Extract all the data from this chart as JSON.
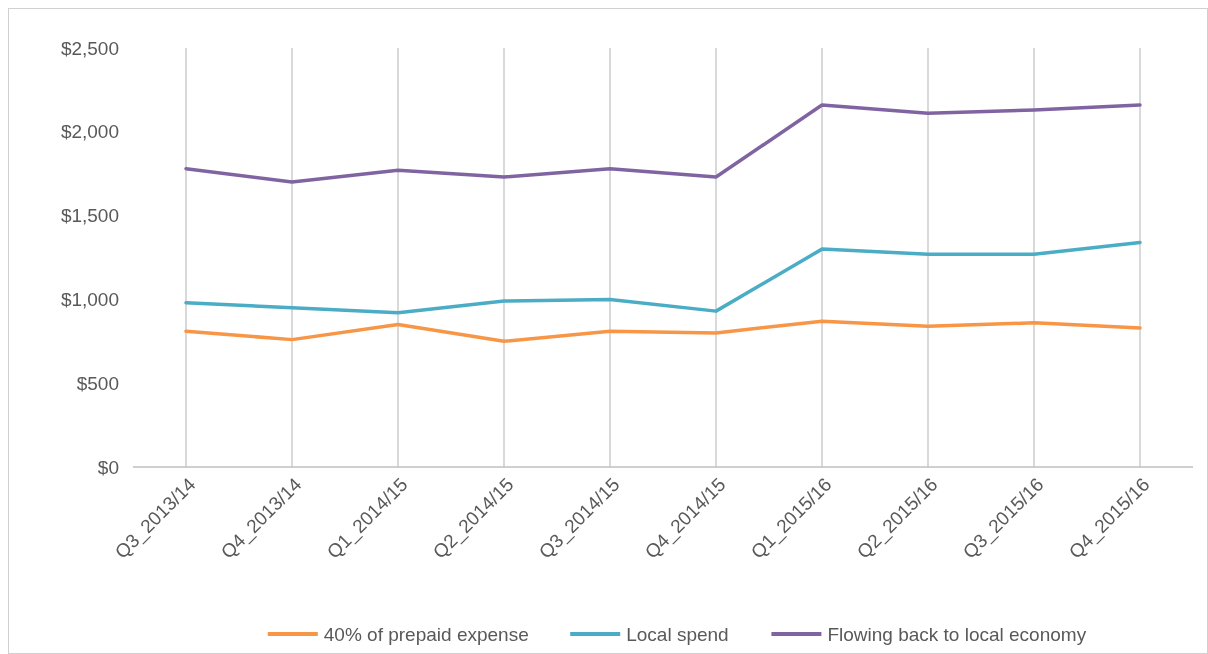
{
  "chart_data": {
    "type": "line",
    "categories": [
      "Q3_2013/14",
      "Q4_2013/14",
      "Q1_2014/15",
      "Q2_2014/15",
      "Q3_2014/15",
      "Q4_2014/15",
      "Q1_2015/16",
      "Q2_2015/16",
      "Q3_2015/16",
      "Q4_2015/16"
    ],
    "series": [
      {
        "name": "40% of prepaid expense",
        "color": "#f79646",
        "values": [
          810,
          760,
          850,
          750,
          810,
          800,
          870,
          840,
          860,
          830
        ]
      },
      {
        "name": "Local spend",
        "color": "#4bacc6",
        "values": [
          980,
          950,
          920,
          990,
          1000,
          930,
          1300,
          1270,
          1270,
          1340
        ]
      },
      {
        "name": "Flowing back to local economy",
        "color": "#8064a2",
        "values": [
          1780,
          1700,
          1770,
          1730,
          1780,
          1730,
          2160,
          2110,
          2130,
          2160
        ]
      }
    ],
    "ylim": [
      0,
      2500
    ],
    "yticks": [
      {
        "value": 0,
        "label": "$0"
      },
      {
        "value": 500,
        "label": "$500"
      },
      {
        "value": 1000,
        "label": "$1,000"
      },
      {
        "value": 1500,
        "label": "$1,500"
      },
      {
        "value": 2000,
        "label": "$2,000"
      },
      {
        "value": 2500,
        "label": "$2,500"
      }
    ],
    "grid": "x",
    "legend": "bottom",
    "marker": "none",
    "line_style": "solid"
  }
}
